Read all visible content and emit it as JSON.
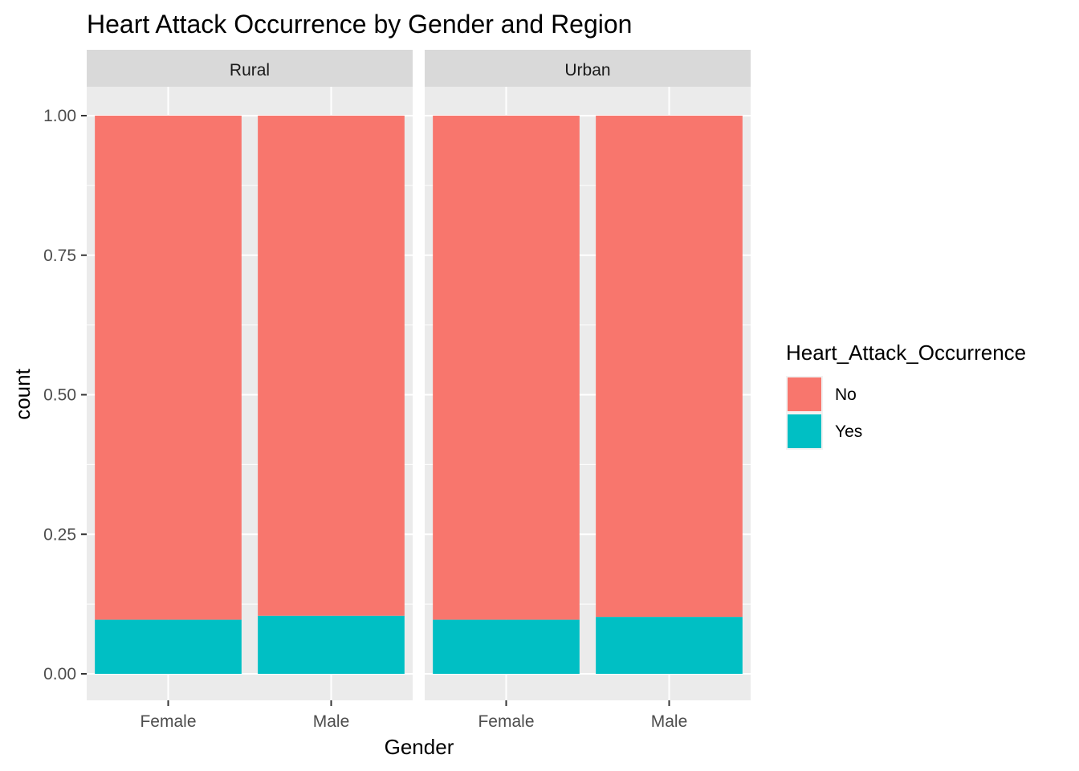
{
  "chart_data": {
    "type": "bar",
    "stacked": true,
    "title": "Heart Attack Occurrence by Gender and Region",
    "xlabel": "Gender",
    "ylabel": "count",
    "ylim": [
      0,
      1.05
    ],
    "yticks": [
      0,
      0.25,
      0.5,
      0.75,
      1.0
    ],
    "ytick_labels": [
      "0.00",
      "0.25",
      "0.50",
      "0.75",
      "1.00"
    ],
    "categories": [
      "Female",
      "Male"
    ],
    "grid": true,
    "legend": {
      "title": "Heart_Attack_Occurrence",
      "position": "right",
      "entries": [
        {
          "label": "No",
          "color": "#F8766D"
        },
        {
          "label": "Yes",
          "color": "#00BFC4"
        }
      ]
    },
    "facets": [
      {
        "label": "Rural",
        "series": [
          {
            "name": "Yes",
            "values": [
              0.097,
              0.104
            ]
          },
          {
            "name": "No",
            "values": [
              0.903,
              0.896
            ]
          }
        ]
      },
      {
        "label": "Urban",
        "series": [
          {
            "name": "Yes",
            "values": [
              0.097,
              0.102
            ]
          },
          {
            "name": "No",
            "values": [
              0.903,
              0.898
            ]
          }
        ]
      }
    ]
  }
}
